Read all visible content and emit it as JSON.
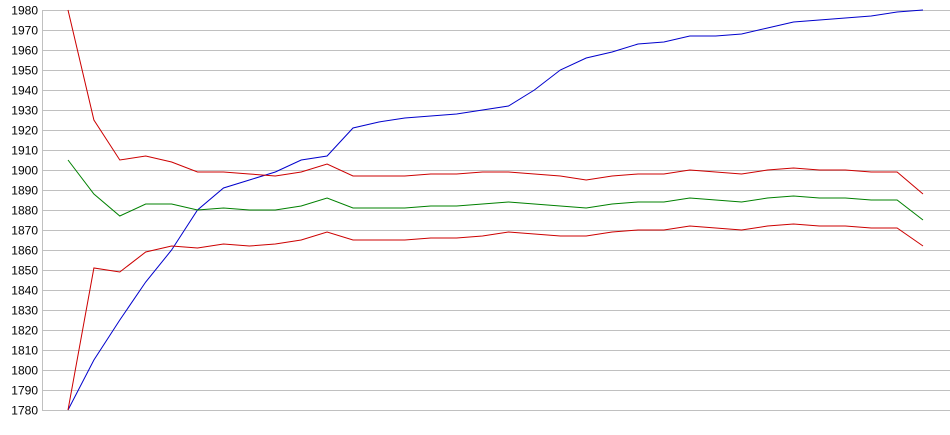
{
  "chart_data": {
    "type": "line",
    "title": "",
    "xlabel": "",
    "ylabel": "",
    "ylim": [
      1780,
      1980
    ],
    "y_ticks": [
      1780,
      1790,
      1800,
      1810,
      1820,
      1830,
      1840,
      1850,
      1860,
      1870,
      1880,
      1890,
      1900,
      1910,
      1920,
      1930,
      1940,
      1950,
      1960,
      1970,
      1980
    ],
    "grid": "horizontal",
    "x": [
      0,
      1,
      2,
      3,
      4,
      5,
      6,
      7,
      8,
      9,
      10,
      11,
      12,
      13,
      14,
      15,
      16,
      17,
      18,
      19,
      20,
      21,
      22,
      23,
      24,
      25,
      26,
      27,
      28,
      29,
      30,
      31,
      32,
      33
    ],
    "series": [
      {
        "color": "#0000cc",
        "values": [
          1780,
          1805,
          1825,
          1844,
          1860,
          1880,
          1891,
          1895,
          1899,
          1905,
          1907,
          1921,
          1924,
          1926,
          1927,
          1928,
          1930,
          1932,
          1940,
          1950,
          1956,
          1959,
          1963,
          1964,
          1967,
          1967,
          1968,
          1971,
          1974,
          1975,
          1976,
          1977,
          1979,
          1980
        ]
      },
      {
        "color": "#cc0000",
        "values": [
          1980,
          1925,
          1905,
          1907,
          1904,
          1899,
          1899,
          1898,
          1897,
          1899,
          1903,
          1897,
          1897,
          1897,
          1898,
          1898,
          1899,
          1899,
          1898,
          1897,
          1895,
          1897,
          1898,
          1898,
          1900,
          1899,
          1898,
          1900,
          1901,
          1900,
          1900,
          1899,
          1899,
          1888
        ]
      },
      {
        "color": "#008000",
        "values": [
          1905,
          1888,
          1877,
          1883,
          1883,
          1880,
          1881,
          1880,
          1880,
          1882,
          1886,
          1881,
          1881,
          1881,
          1882,
          1882,
          1883,
          1884,
          1883,
          1882,
          1881,
          1883,
          1884,
          1884,
          1886,
          1885,
          1884,
          1886,
          1887,
          1886,
          1886,
          1885,
          1885,
          1875
        ]
      },
      {
        "color": "#cc0000",
        "values": [
          1780,
          1851,
          1849,
          1859,
          1862,
          1861,
          1863,
          1862,
          1863,
          1865,
          1869,
          1865,
          1865,
          1865,
          1866,
          1866,
          1867,
          1869,
          1868,
          1867,
          1867,
          1869,
          1870,
          1870,
          1872,
          1871,
          1870,
          1872,
          1873,
          1872,
          1872,
          1871,
          1871,
          1862
        ]
      }
    ]
  }
}
